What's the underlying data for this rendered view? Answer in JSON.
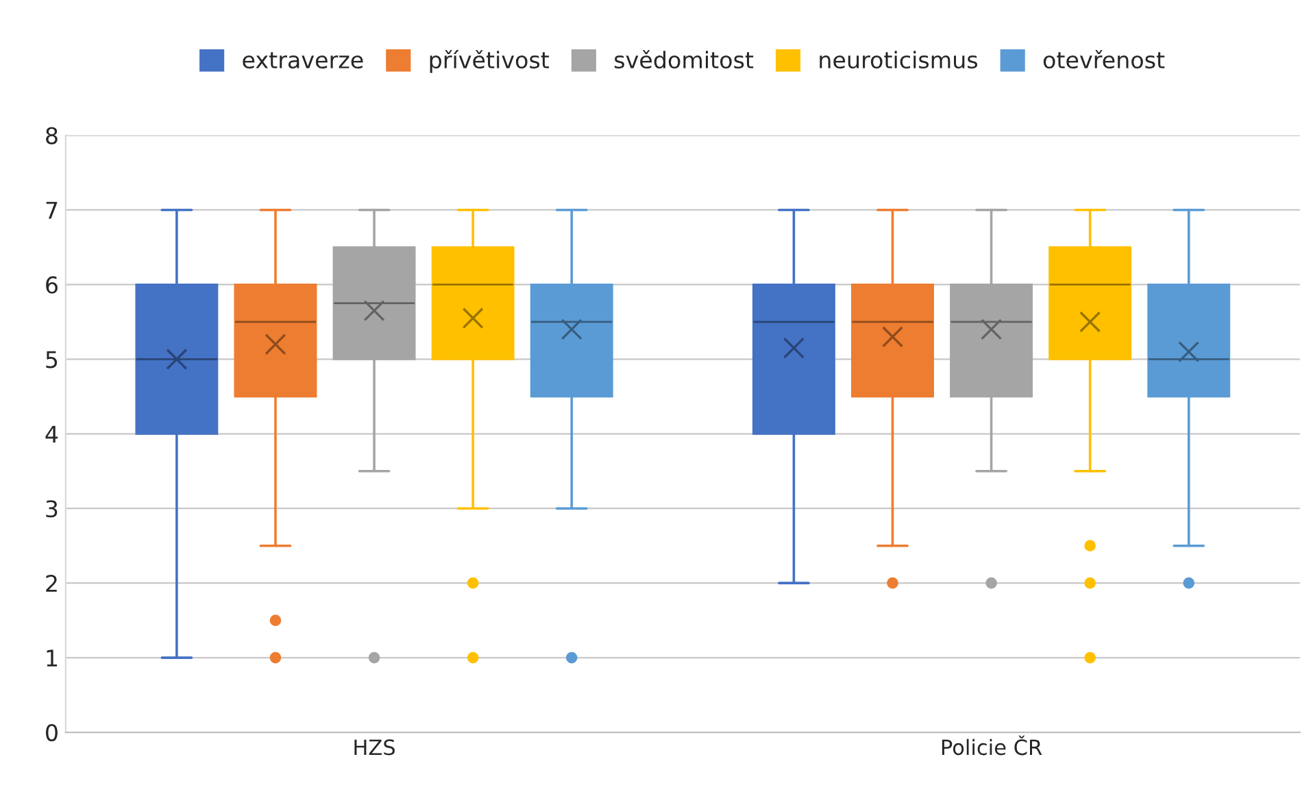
{
  "chart_data": {
    "type": "box",
    "categories": [
      "HZS",
      "Policie ČR"
    ],
    "series": [
      {
        "name": "extraverze",
        "color": "#4472c4",
        "boxes": [
          {
            "low": 1,
            "q1": 4,
            "median": 5,
            "q3": 6,
            "high": 7,
            "mean": 5
          },
          {
            "low": 2,
            "q1": 4,
            "median": 5.5,
            "q3": 6,
            "high": 7,
            "mean": 5.15
          }
        ]
      },
      {
        "name": "přívětivost",
        "color": "#ed7d31",
        "boxes": [
          {
            "low": 2.5,
            "q1": 4.5,
            "median": 5.5,
            "q3": 6,
            "high": 7,
            "mean": 5.2,
            "outliers": [
              1.5,
              1
            ]
          },
          {
            "low": 2.5,
            "q1": 4.5,
            "median": 5.5,
            "q3": 6,
            "high": 7,
            "mean": 5.3,
            "outliers": [
              2
            ]
          }
        ]
      },
      {
        "name": "svědomitost",
        "color": "#a5a5a5",
        "boxes": [
          {
            "low": 3.5,
            "q1": 5,
            "median": 5.75,
            "q3": 6.5,
            "high": 7,
            "mean": 5.65,
            "outliers": [
              1
            ]
          },
          {
            "low": 3.5,
            "q1": 4.5,
            "median": 5.5,
            "q3": 6,
            "high": 7,
            "mean": 5.4,
            "outliers": [
              2
            ]
          }
        ]
      },
      {
        "name": "neuroticismus",
        "color": "#ffc000",
        "boxes": [
          {
            "low": 3,
            "q1": 5,
            "median": 6,
            "q3": 6.5,
            "high": 7,
            "mean": 5.55,
            "outliers": [
              2,
              1
            ]
          },
          {
            "low": 3.5,
            "q1": 5,
            "median": 6,
            "q3": 6.5,
            "high": 7,
            "mean": 5.5,
            "outliers": [
              2.5,
              2,
              1
            ]
          }
        ]
      },
      {
        "name": "otevřenost",
        "color": "#5b9bd5",
        "boxes": [
          {
            "low": 3,
            "q1": 4.5,
            "median": 5.5,
            "q3": 6,
            "high": 7,
            "mean": 5.4,
            "outliers": [
              1
            ]
          },
          {
            "low": 2.5,
            "q1": 4.5,
            "median": 5,
            "q3": 6,
            "high": 7,
            "mean": 5.1,
            "outliers": [
              2
            ]
          }
        ]
      }
    ],
    "ylim": [
      0,
      8
    ],
    "yticks": [
      0,
      1,
      2,
      3,
      4,
      5,
      6,
      7,
      8
    ],
    "grid": "y",
    "legend": "top",
    "marker": "cross"
  }
}
